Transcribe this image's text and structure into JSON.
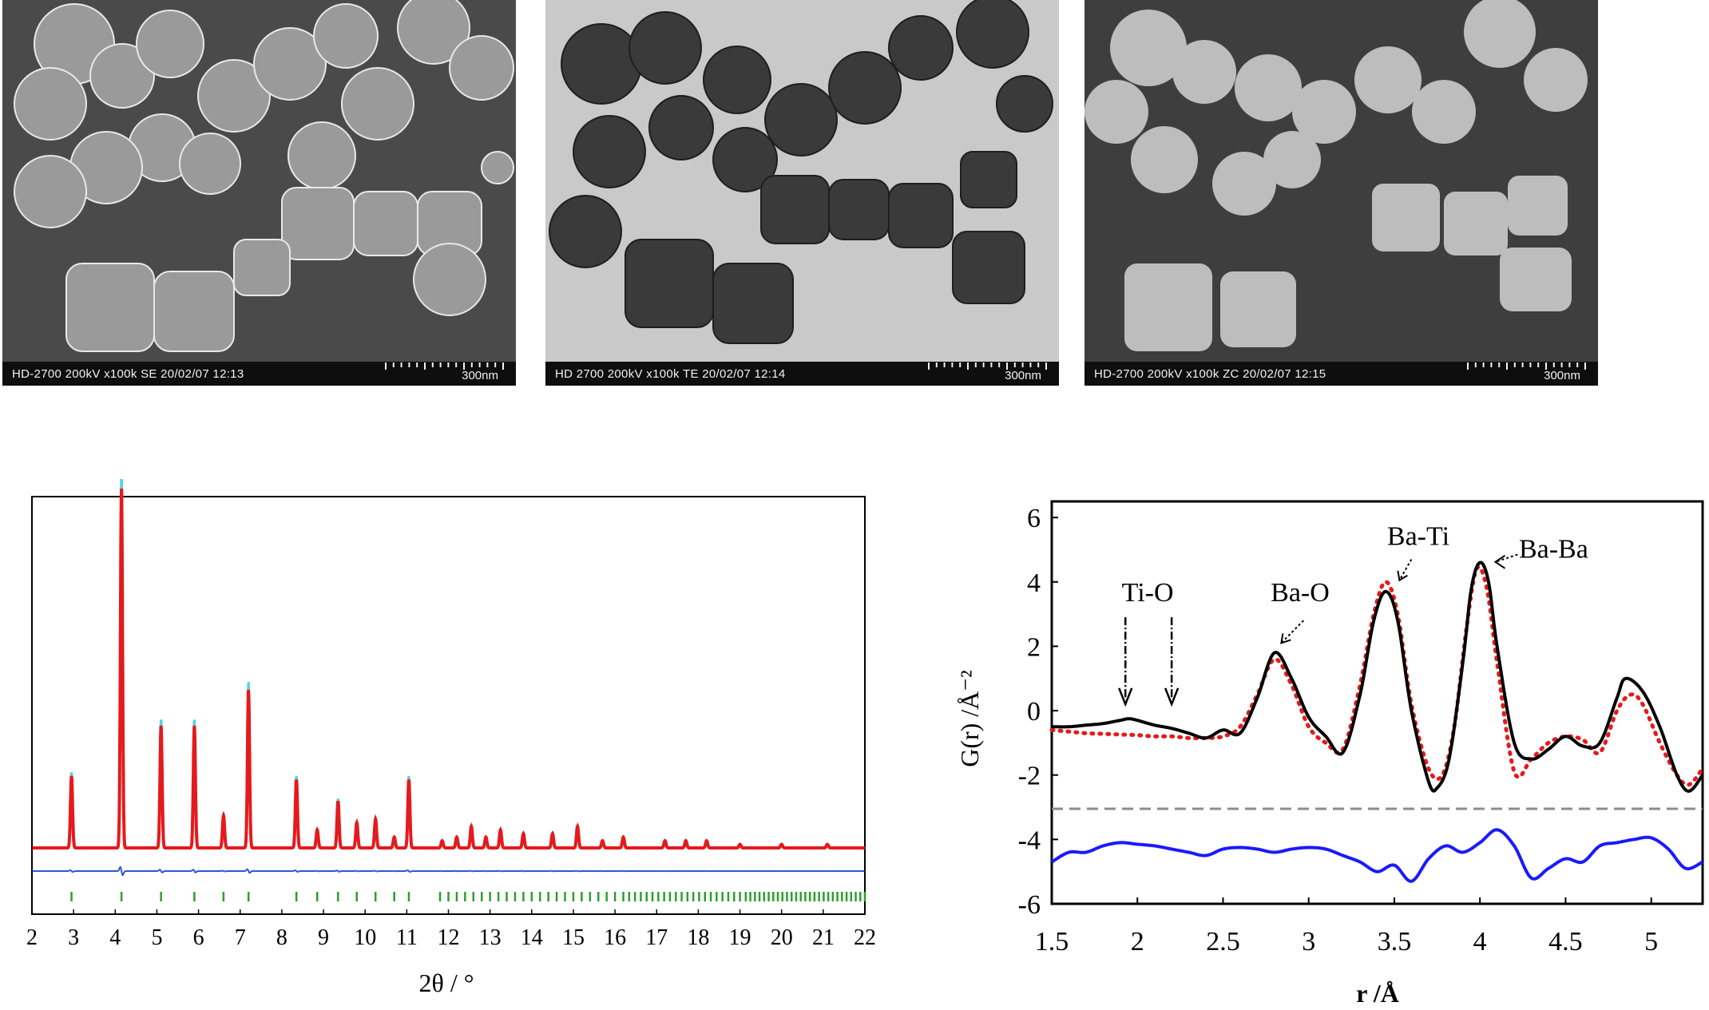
{
  "micrographs": [
    {
      "caption": "HD-2700  200kV  x100k  SE  20/02/07  12:13",
      "scale": "300nm",
      "mode": "SE"
    },
    {
      "caption": "HD 2700  200kV  x100k  TE  20/02/07  12:14",
      "scale": "300nm",
      "mode": "TE"
    },
    {
      "caption": "HD-2700  200kV  x100k  ZC  20/02/07  12:15",
      "scale": "300nm",
      "mode": "ZC"
    }
  ],
  "chart_data": [
    {
      "type": "line",
      "id": "xrd",
      "xlabel": "2θ / °",
      "xlim": [
        2,
        22
      ],
      "xticks": [
        2,
        3,
        4,
        5,
        6,
        7,
        8,
        9,
        10,
        11,
        12,
        13,
        14,
        15,
        16,
        17,
        18,
        19,
        20,
        21,
        22
      ],
      "peaks": [
        {
          "x": 2.95,
          "y": 0.2
        },
        {
          "x": 4.15,
          "y": 1.0
        },
        {
          "x": 5.1,
          "y": 0.34
        },
        {
          "x": 5.9,
          "y": 0.34
        },
        {
          "x": 6.6,
          "y": 0.09
        },
        {
          "x": 7.2,
          "y": 0.44
        },
        {
          "x": 8.35,
          "y": 0.19
        },
        {
          "x": 8.85,
          "y": 0.05
        },
        {
          "x": 9.35,
          "y": 0.13
        },
        {
          "x": 9.8,
          "y": 0.07
        },
        {
          "x": 10.25,
          "y": 0.08
        },
        {
          "x": 10.7,
          "y": 0.03
        },
        {
          "x": 11.05,
          "y": 0.19
        },
        {
          "x": 11.85,
          "y": 0.02
        },
        {
          "x": 12.2,
          "y": 0.03
        },
        {
          "x": 12.55,
          "y": 0.06
        },
        {
          "x": 12.9,
          "y": 0.03
        },
        {
          "x": 13.25,
          "y": 0.05
        },
        {
          "x": 13.8,
          "y": 0.04
        },
        {
          "x": 14.5,
          "y": 0.04
        },
        {
          "x": 15.1,
          "y": 0.06
        },
        {
          "x": 15.7,
          "y": 0.02
        },
        {
          "x": 16.2,
          "y": 0.03
        },
        {
          "x": 17.2,
          "y": 0.02
        },
        {
          "x": 17.7,
          "y": 0.02
        },
        {
          "x": 18.2,
          "y": 0.02
        },
        {
          "x": 19.0,
          "y": 0.01
        },
        {
          "x": 20.0,
          "y": 0.01
        },
        {
          "x": 21.1,
          "y": 0.01
        }
      ],
      "series": [
        {
          "role": "observed",
          "color": "#e41a1c"
        },
        {
          "role": "calculated",
          "color": "#4fd3e0"
        },
        {
          "role": "difference",
          "color": "#2b57d9"
        },
        {
          "role": "reflection markers",
          "color": "#2ca02c"
        }
      ],
      "grid": false
    },
    {
      "type": "line",
      "id": "pdf",
      "xlabel": "r /Å",
      "ylabel": "G(r) /Å⁻²",
      "xlim": [
        1.5,
        5.3
      ],
      "ylim": [
        -6,
        6.5
      ],
      "xticks": [
        "1.5",
        "2",
        "2.5",
        "3",
        "3.5",
        "4",
        "4.5",
        "5"
      ],
      "yticks": [
        "6",
        "4",
        "2",
        "0",
        "-2",
        "-4",
        "-6"
      ],
      "series": [
        {
          "role": "fit",
          "color": "#000000",
          "style": "solid",
          "points": [
            [
              1.5,
              -0.5
            ],
            [
              1.6,
              -0.5
            ],
            [
              1.7,
              -0.45
            ],
            [
              1.8,
              -0.4
            ],
            [
              1.9,
              -0.3
            ],
            [
              1.95,
              -0.25
            ],
            [
              2.0,
              -0.3
            ],
            [
              2.1,
              -0.45
            ],
            [
              2.2,
              -0.55
            ],
            [
              2.3,
              -0.7
            ],
            [
              2.4,
              -0.85
            ],
            [
              2.5,
              -0.6
            ],
            [
              2.6,
              -0.7
            ],
            [
              2.7,
              0.4
            ],
            [
              2.8,
              1.8
            ],
            [
              2.9,
              1.0
            ],
            [
              3.0,
              -0.2
            ],
            [
              3.1,
              -0.8
            ],
            [
              3.2,
              -1.3
            ],
            [
              3.3,
              0.5
            ],
            [
              3.38,
              2.8
            ],
            [
              3.45,
              3.7
            ],
            [
              3.52,
              2.8
            ],
            [
              3.6,
              0.0
            ],
            [
              3.7,
              -2.2
            ],
            [
              3.75,
              -2.4
            ],
            [
              3.82,
              -1.5
            ],
            [
              3.9,
              1.5
            ],
            [
              3.95,
              3.8
            ],
            [
              4.0,
              4.6
            ],
            [
              4.05,
              4.0
            ],
            [
              4.1,
              2.0
            ],
            [
              4.2,
              -1.0
            ],
            [
              4.3,
              -1.5
            ],
            [
              4.4,
              -1.2
            ],
            [
              4.5,
              -0.8
            ],
            [
              4.6,
              -1.1
            ],
            [
              4.7,
              -1.0
            ],
            [
              4.8,
              0.4
            ],
            [
              4.85,
              1.0
            ],
            [
              4.95,
              0.6
            ],
            [
              5.05,
              -0.5
            ],
            [
              5.15,
              -2.0
            ],
            [
              5.22,
              -2.5
            ],
            [
              5.3,
              -2.0
            ]
          ]
        },
        {
          "role": "data",
          "color": "#e41a1c",
          "style": "dotted",
          "points": [
            [
              1.5,
              -0.6
            ],
            [
              1.6,
              -0.65
            ],
            [
              1.7,
              -0.7
            ],
            [
              1.8,
              -0.72
            ],
            [
              1.9,
              -0.74
            ],
            [
              2.0,
              -0.76
            ],
            [
              2.1,
              -0.8
            ],
            [
              2.2,
              -0.8
            ],
            [
              2.3,
              -0.85
            ],
            [
              2.4,
              -0.85
            ],
            [
              2.5,
              -0.8
            ],
            [
              2.6,
              -0.5
            ],
            [
              2.7,
              0.5
            ],
            [
              2.8,
              1.6
            ],
            [
              2.9,
              0.8
            ],
            [
              3.0,
              -0.5
            ],
            [
              3.1,
              -1.0
            ],
            [
              3.2,
              -1.2
            ],
            [
              3.3,
              0.8
            ],
            [
              3.38,
              3.0
            ],
            [
              3.45,
              4.0
            ],
            [
              3.52,
              3.0
            ],
            [
              3.6,
              0.2
            ],
            [
              3.7,
              -1.8
            ],
            [
              3.78,
              -2.0
            ],
            [
              3.85,
              -0.5
            ],
            [
              3.92,
              2.5
            ],
            [
              3.98,
              4.4
            ],
            [
              4.04,
              3.8
            ],
            [
              4.1,
              1.5
            ],
            [
              4.2,
              -1.9
            ],
            [
              4.3,
              -1.5
            ],
            [
              4.4,
              -1.0
            ],
            [
              4.5,
              -0.8
            ],
            [
              4.6,
              -0.9
            ],
            [
              4.7,
              -1.3
            ],
            [
              4.8,
              0.0
            ],
            [
              4.88,
              0.5
            ],
            [
              4.95,
              0.2
            ],
            [
              5.05,
              -1.0
            ],
            [
              5.15,
              -2.0
            ],
            [
              5.22,
              -2.3
            ],
            [
              5.3,
              -1.8
            ]
          ]
        },
        {
          "role": "baseline",
          "color": "#8c8c8c",
          "style": "dashed",
          "points": [
            [
              1.5,
              -3.05
            ],
            [
              5.3,
              -3.05
            ]
          ]
        },
        {
          "role": "difference",
          "color": "#1a1aff",
          "style": "solid",
          "points": [
            [
              1.5,
              -4.7
            ],
            [
              1.6,
              -4.4
            ],
            [
              1.7,
              -4.4
            ],
            [
              1.8,
              -4.2
            ],
            [
              1.9,
              -4.1
            ],
            [
              2.0,
              -4.15
            ],
            [
              2.1,
              -4.2
            ],
            [
              2.2,
              -4.3
            ],
            [
              2.3,
              -4.4
            ],
            [
              2.4,
              -4.5
            ],
            [
              2.5,
              -4.3
            ],
            [
              2.6,
              -4.25
            ],
            [
              2.7,
              -4.3
            ],
            [
              2.8,
              -4.4
            ],
            [
              2.9,
              -4.3
            ],
            [
              3.0,
              -4.25
            ],
            [
              3.1,
              -4.3
            ],
            [
              3.2,
              -4.5
            ],
            [
              3.3,
              -4.7
            ],
            [
              3.4,
              -5.0
            ],
            [
              3.5,
              -4.8
            ],
            [
              3.6,
              -5.3
            ],
            [
              3.7,
              -4.6
            ],
            [
              3.8,
              -4.2
            ],
            [
              3.9,
              -4.4
            ],
            [
              4.0,
              -4.1
            ],
            [
              4.1,
              -3.7
            ],
            [
              4.2,
              -4.2
            ],
            [
              4.3,
              -5.2
            ],
            [
              4.4,
              -4.9
            ],
            [
              4.5,
              -4.6
            ],
            [
              4.6,
              -4.7
            ],
            [
              4.7,
              -4.2
            ],
            [
              4.8,
              -4.1
            ],
            [
              4.9,
              -4.0
            ],
            [
              5.0,
              -3.95
            ],
            [
              5.1,
              -4.3
            ],
            [
              5.2,
              -4.9
            ],
            [
              5.3,
              -4.7
            ]
          ]
        }
      ],
      "annotations": [
        {
          "text": "Ti-O",
          "arrows": [
            1.93,
            2.2
          ]
        },
        {
          "text": "Ba-O",
          "target": 2.8
        },
        {
          "text": "Ba-Ti",
          "target": 3.52
        },
        {
          "text": "Ba-Ba",
          "target": 4.05
        }
      ],
      "grid": false
    }
  ]
}
